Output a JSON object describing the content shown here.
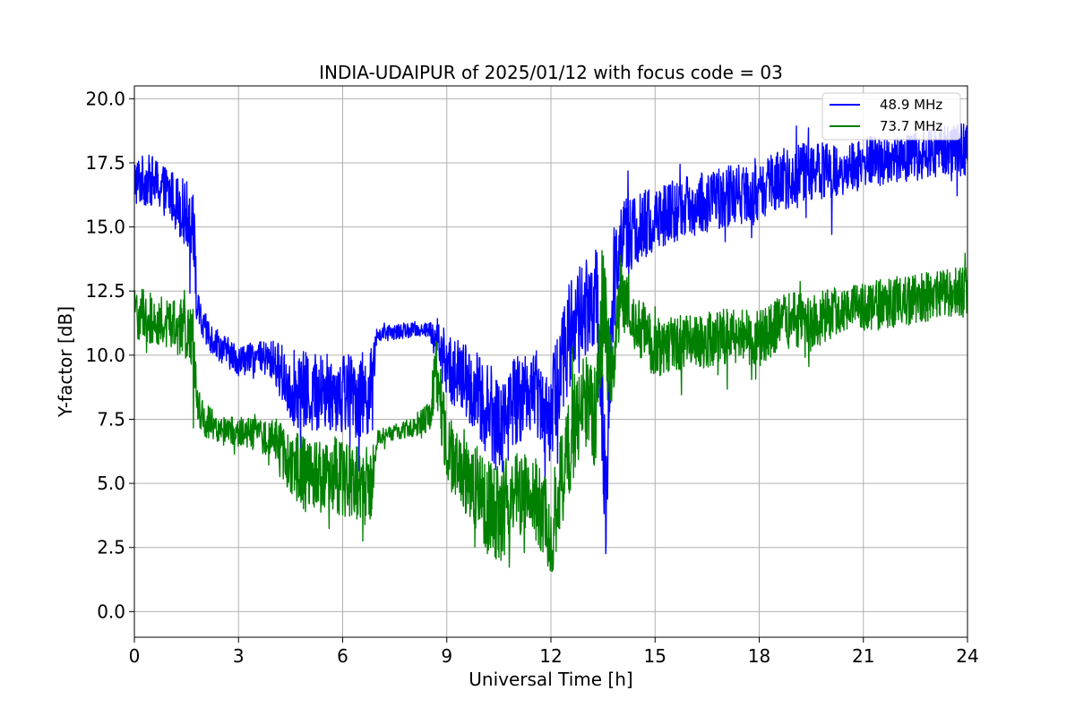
{
  "chart_data": {
    "type": "line",
    "title": "INDIA-UDAIPUR of 2025/01/12 with focus code = 03",
    "xlabel": "Universal Time [h]",
    "ylabel": "Y-factor [dB]",
    "xlim": [
      0,
      24
    ],
    "ylim": [
      -1.0,
      20.5
    ],
    "xticks": [
      0,
      3,
      6,
      9,
      12,
      15,
      18,
      21,
      24
    ],
    "yticks": [
      0.0,
      2.5,
      5.0,
      7.5,
      10.0,
      12.5,
      15.0,
      17.5,
      20.0
    ],
    "xtick_labels": [
      "0",
      "3",
      "6",
      "9",
      "12",
      "15",
      "18",
      "21",
      "24"
    ],
    "ytick_labels": [
      "0.0",
      "2.5",
      "5.0",
      "7.5",
      "10.0",
      "12.5",
      "15.0",
      "17.5",
      "20.0"
    ],
    "grid": true,
    "legend_position": "top-right",
    "series": [
      {
        "name": "48.9 MHz",
        "color": "#0000ff",
        "x": [
          0,
          0.5,
          1.0,
          1.5,
          1.7,
          1.8,
          2.0,
          2.5,
          3.0,
          3.5,
          4.0,
          4.5,
          5.0,
          5.5,
          6.0,
          6.5,
          6.8,
          7.0,
          7.5,
          8.0,
          8.5,
          8.7,
          9.0,
          9.5,
          10.0,
          10.5,
          11.0,
          11.5,
          12.0,
          12.3,
          12.7,
          13.0,
          13.3,
          13.6,
          13.8,
          14.0,
          14.5,
          15.0,
          15.5,
          16.0,
          16.5,
          17.0,
          17.5,
          18.0,
          18.5,
          19.0,
          19.5,
          20.0,
          20.5,
          21.0,
          21.5,
          22.0,
          22.5,
          23.0,
          23.5,
          24.0
        ],
        "y": [
          16.8,
          16.8,
          16.3,
          15.5,
          15.3,
          11.8,
          11.0,
          10.3,
          9.8,
          9.9,
          9.8,
          8.8,
          8.5,
          8.6,
          8.6,
          8.4,
          8.6,
          10.8,
          10.9,
          11.0,
          11.0,
          10.6,
          9.6,
          9.0,
          8.2,
          7.3,
          8.2,
          8.8,
          7.5,
          9.8,
          11.5,
          11.8,
          12.5,
          4.0,
          12.8,
          14.8,
          14.8,
          15.3,
          15.6,
          15.8,
          16.0,
          16.2,
          16.3,
          16.2,
          16.8,
          17.0,
          17.2,
          17.3,
          17.2,
          17.5,
          17.6,
          17.6,
          17.8,
          17.9,
          18.0,
          18.0
        ],
        "amplitude": [
          1.0,
          1.0,
          1.0,
          1.3,
          1.6,
          0.8,
          0.7,
          0.6,
          0.6,
          0.6,
          0.8,
          1.5,
          1.6,
          1.6,
          1.7,
          1.7,
          1.6,
          0.3,
          0.3,
          0.3,
          0.3,
          1.0,
          1.3,
          1.5,
          1.8,
          2.0,
          1.8,
          1.6,
          2.0,
          2.2,
          2.2,
          2.0,
          2.2,
          2.5,
          2.2,
          1.5,
          1.5,
          1.3,
          1.2,
          1.2,
          1.2,
          1.2,
          1.2,
          1.2,
          1.2,
          1.2,
          1.2,
          1.2,
          1.0,
          1.0,
          1.0,
          1.0,
          1.0,
          1.0,
          1.0,
          1.2
        ]
      },
      {
        "name": "73.7 MHz",
        "color": "#008000",
        "x": [
          0,
          0.5,
          1.0,
          1.5,
          1.7,
          1.8,
          2.0,
          2.5,
          3.0,
          3.5,
          4.0,
          4.5,
          5.0,
          5.5,
          6.0,
          6.5,
          6.8,
          7.0,
          7.5,
          8.0,
          8.5,
          8.7,
          9.0,
          9.5,
          10.0,
          10.5,
          11.0,
          11.5,
          12.0,
          12.3,
          12.7,
          13.0,
          13.3,
          13.5,
          13.8,
          14.0,
          14.5,
          15.0,
          15.5,
          16.0,
          16.5,
          17.0,
          17.5,
          18.0,
          18.5,
          19.0,
          19.5,
          20.0,
          20.5,
          21.0,
          21.5,
          22.0,
          22.5,
          23.0,
          23.5,
          24.0
        ],
        "y": [
          11.6,
          11.4,
          11.2,
          11.0,
          10.5,
          8.0,
          7.5,
          7.0,
          7.0,
          6.9,
          6.8,
          5.8,
          5.3,
          5.3,
          5.3,
          5.0,
          4.8,
          6.8,
          7.0,
          7.2,
          7.6,
          9.5,
          6.2,
          5.5,
          4.5,
          3.8,
          4.8,
          4.5,
          3.0,
          5.0,
          7.5,
          8.2,
          7.5,
          12.0,
          8.5,
          12.5,
          11.2,
          10.3,
          10.4,
          10.5,
          10.6,
          10.7,
          10.8,
          10.6,
          11.2,
          11.4,
          11.2,
          11.5,
          11.7,
          11.8,
          12.0,
          12.1,
          12.2,
          12.3,
          12.4,
          12.5
        ],
        "amplitude": [
          1.0,
          1.0,
          1.0,
          1.2,
          1.5,
          0.8,
          0.7,
          0.6,
          0.6,
          0.6,
          0.8,
          1.3,
          1.5,
          1.5,
          1.6,
          1.6,
          1.5,
          0.3,
          0.3,
          0.4,
          0.6,
          1.5,
          1.5,
          1.6,
          1.8,
          2.0,
          1.8,
          1.6,
          2.0,
          2.0,
          2.0,
          1.8,
          2.0,
          3.0,
          2.0,
          1.5,
          1.2,
          1.2,
          1.1,
          1.1,
          1.1,
          1.1,
          1.1,
          1.1,
          1.1,
          1.1,
          1.1,
          1.1,
          1.0,
          1.0,
          1.0,
          1.0,
          1.0,
          1.0,
          1.0,
          1.0
        ]
      }
    ]
  }
}
